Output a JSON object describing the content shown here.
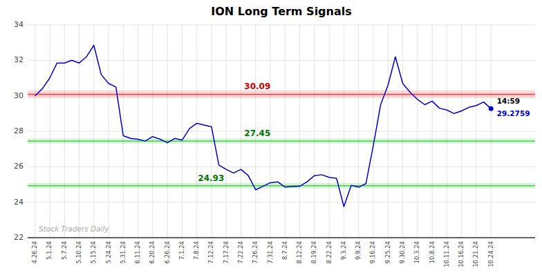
{
  "chart_data": {
    "type": "line",
    "title": "ION Long Term Signals",
    "categories": [
      "4.26.24",
      null,
      "5.1.24",
      null,
      "5.7.24",
      null,
      "5.10.24",
      null,
      "5.15.24",
      null,
      "5.24.24",
      null,
      "5.31.24",
      null,
      "6.11.24",
      null,
      "6.20.24",
      null,
      "6.26.24",
      null,
      "7.1.24",
      null,
      "7.8.24",
      null,
      "7.12.24",
      null,
      "7.17.24",
      null,
      "7.22.24",
      null,
      "7.26.24",
      null,
      "7.31.24",
      null,
      "8.7.24",
      null,
      "8.12.24",
      null,
      "8.19.24",
      null,
      "8.22.24",
      null,
      "9.3.24",
      null,
      "9.9.24",
      null,
      "9.16.24",
      null,
      "9.25.24",
      null,
      "9.30.24",
      null,
      "10.3.24",
      null,
      "10.8.24",
      null,
      "10.11.24",
      null,
      "10.16.24",
      null,
      "10.21.24",
      null,
      "10.24.24"
    ],
    "values": [
      30.0,
      30.4,
      31.0,
      31.85,
      31.85,
      32.0,
      31.85,
      32.2,
      32.85,
      31.2,
      30.7,
      30.5,
      27.75,
      27.6,
      27.55,
      27.45,
      27.7,
      27.55,
      27.35,
      27.6,
      27.5,
      28.15,
      28.45,
      28.35,
      28.25,
      26.1,
      25.85,
      25.65,
      25.85,
      25.5,
      24.7,
      24.9,
      25.1,
      25.15,
      24.85,
      24.88,
      24.9,
      25.15,
      25.5,
      25.55,
      25.4,
      25.35,
      23.75,
      24.95,
      24.85,
      25.05,
      27.2,
      29.5,
      30.6,
      32.2,
      30.7,
      30.2,
      29.8,
      29.5,
      29.7,
      29.3,
      29.2,
      29.0,
      29.15,
      29.35,
      29.45,
      29.65,
      29.28
    ],
    "color": "#0000cc",
    "reference_lines": [
      {
        "text": "30.09",
        "value": 30.09,
        "color": "#ff0000"
      },
      {
        "text": "27.45",
        "value": 27.45,
        "color": "#00bb00"
      },
      {
        "text": "24.93",
        "value": 24.93,
        "color": "#00bb00"
      }
    ],
    "last_point_labels": [
      "14:59",
      "29.2759"
    ],
    "watermark": "Stock Traders Daily",
    "ylim": [
      22,
      34
    ],
    "yticks": [
      22,
      24,
      26,
      28,
      30,
      32,
      34
    ],
    "grid": true
  }
}
